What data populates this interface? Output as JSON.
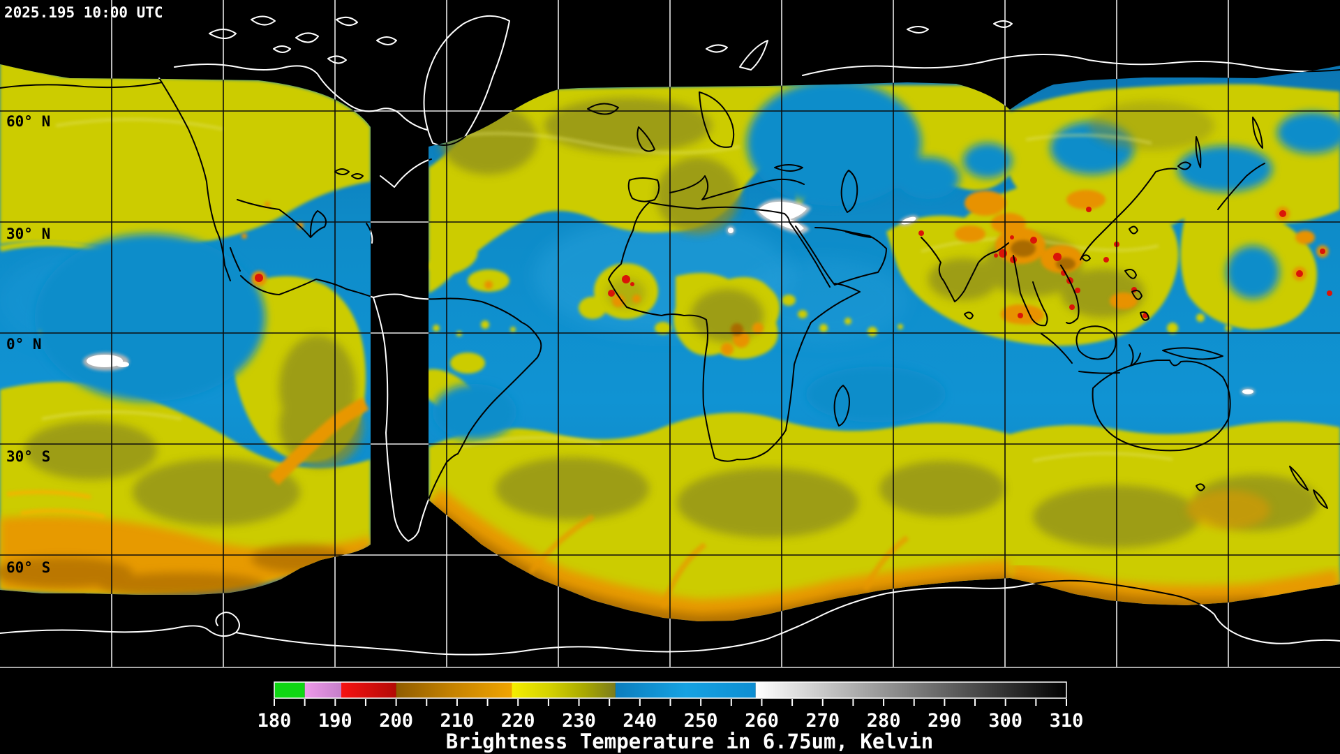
{
  "header": {
    "timestamp": "2025.195 10:00 UTC"
  },
  "map": {
    "latitude_labels": [
      "60° N",
      "30° N",
      "0° N",
      "30° S",
      "60° S"
    ],
    "grid": {
      "lat_interval_deg": 30,
      "lon_interval_deg": 30
    },
    "no_data_color": "#000000",
    "coastline_over_data_color": "#000000",
    "coastline_over_void_color": "#ffffff"
  },
  "colorbar": {
    "caption": "Brightness Temperature in 6.75um, Kelvin",
    "min_k": 180,
    "max_k": 310,
    "labeled_tick_step_k": 10,
    "minor_tick_step_k": 5,
    "tick_labels": [
      "180",
      "190",
      "200",
      "210",
      "220",
      "230",
      "240",
      "250",
      "260",
      "270",
      "280",
      "290",
      "300",
      "310"
    ],
    "segments": [
      {
        "name": "green",
        "range_k": "180-185",
        "color": "#0fd714"
      },
      {
        "name": "violet",
        "range_k": "185-191",
        "color": "#e392de"
      },
      {
        "name": "red",
        "range_k": "191-200",
        "color": "#e01010"
      },
      {
        "name": "orange",
        "range_k": "200-219",
        "color": "#8f5c00 to #f0a400"
      },
      {
        "name": "yellow",
        "range_k": "219-226",
        "color": "#f2ee00"
      },
      {
        "name": "olive",
        "range_k": "226-236",
        "color": "#b9b900 to #7c7c1c"
      },
      {
        "name": "blue",
        "range_k": "236-259",
        "color": "#0b7dbd to #16a2e2"
      },
      {
        "name": "grayscale",
        "range_k": "259-310",
        "color": "#ffffff to #000000"
      }
    ]
  }
}
